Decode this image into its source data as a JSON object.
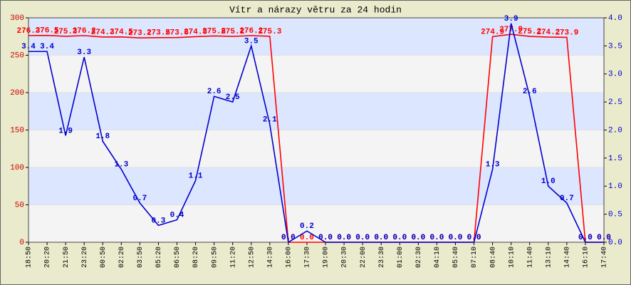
{
  "chart_data": {
    "type": "line",
    "title": "Vítr a nárazy větru za 24 hodin",
    "categories": [
      "18:50",
      "20:20",
      "21:50",
      "23:20",
      "00:50",
      "02:20",
      "03:50",
      "05:20",
      "06:50",
      "08:20",
      "09:50",
      "11:20",
      "12:50",
      "14:30",
      "16:00",
      "17:30",
      "19:00",
      "20:30",
      "22:00",
      "23:30",
      "01:00",
      "02:30",
      "04:10",
      "05:40",
      "07:10",
      "08:40",
      "10:10",
      "11:40",
      "13:10",
      "14:40",
      "16:10",
      "17:40"
    ],
    "series": [
      {
        "color": "#ff0000",
        "axis": "y",
        "values": [
          276.3,
          276.5,
          275.3,
          276.2,
          274.3,
          274.5,
          273.2,
          273.5,
          273.6,
          274.8,
          275.8,
          275.2,
          276.2,
          275.3,
          0,
          0,
          0,
          0,
          0,
          0,
          0,
          0,
          0,
          0,
          0,
          274.9,
          277.9,
          275.2,
          274.2,
          273.9,
          0,
          0
        ],
        "value_labels": [
          "276.3",
          "276.5",
          "275.3",
          "276.2",
          "274.3",
          "274.5",
          "273.2",
          "273.5",
          "273.6",
          "274.8",
          "275.8",
          "275.2",
          "276.2",
          "275.3",
          "0.0",
          "0.0",
          "0.0",
          "0.0",
          "0.0",
          "0.0",
          "0.0",
          "0.0",
          "0.0",
          "0.0",
          "0.0",
          "274.9",
          "277.9",
          "275.2",
          "274.2",
          "273.9",
          "0.0",
          "0.0"
        ]
      },
      {
        "color": "#0000cc",
        "axis": "y2",
        "values": [
          3.4,
          3.4,
          1.9,
          3.3,
          1.8,
          1.3,
          0.7,
          0.3,
          0.4,
          1.1,
          2.6,
          2.5,
          3.5,
          2.1,
          0,
          0.2,
          0,
          0,
          0,
          0,
          0,
          0,
          0,
          0,
          0,
          1.3,
          3.9,
          2.6,
          1.0,
          0.7,
          0,
          0
        ],
        "value_labels": [
          "3.4",
          "3.4",
          "1.9",
          "3.3",
          "1.8",
          "1.3",
          "0.7",
          "0.3",
          "0.4",
          "1.1",
          "2.6",
          "2.5",
          "3.5",
          "2.1",
          "0.0",
          "0.2",
          "0.0",
          "0.0",
          "0.0",
          "0.0",
          "0.0",
          "0.0",
          "0.0",
          "0.0",
          "0.0",
          "1.3",
          "3.9",
          "2.6",
          "1.0",
          "0.7",
          "0.0",
          "0.0"
        ]
      }
    ],
    "ylim": [
      0,
      300
    ],
    "yticks": [
      0,
      50,
      100,
      150,
      200,
      250,
      300
    ],
    "y2lim": [
      0,
      4
    ],
    "y2ticks": [
      {
        "value": 0,
        "label": "0.0"
      },
      {
        "value": 0.5,
        "label": "0.5"
      },
      {
        "value": 1,
        "label": "1.0"
      },
      {
        "value": 1.5,
        "label": "1.5"
      },
      {
        "value": 2,
        "label": "2.0"
      },
      {
        "value": 2.5,
        "label": "2.5"
      },
      {
        "value": 3,
        "label": "3.0"
      },
      {
        "value": 3.5,
        "label": "3.5"
      },
      {
        "value": 4,
        "label": "4.0"
      }
    ],
    "grid": true
  }
}
